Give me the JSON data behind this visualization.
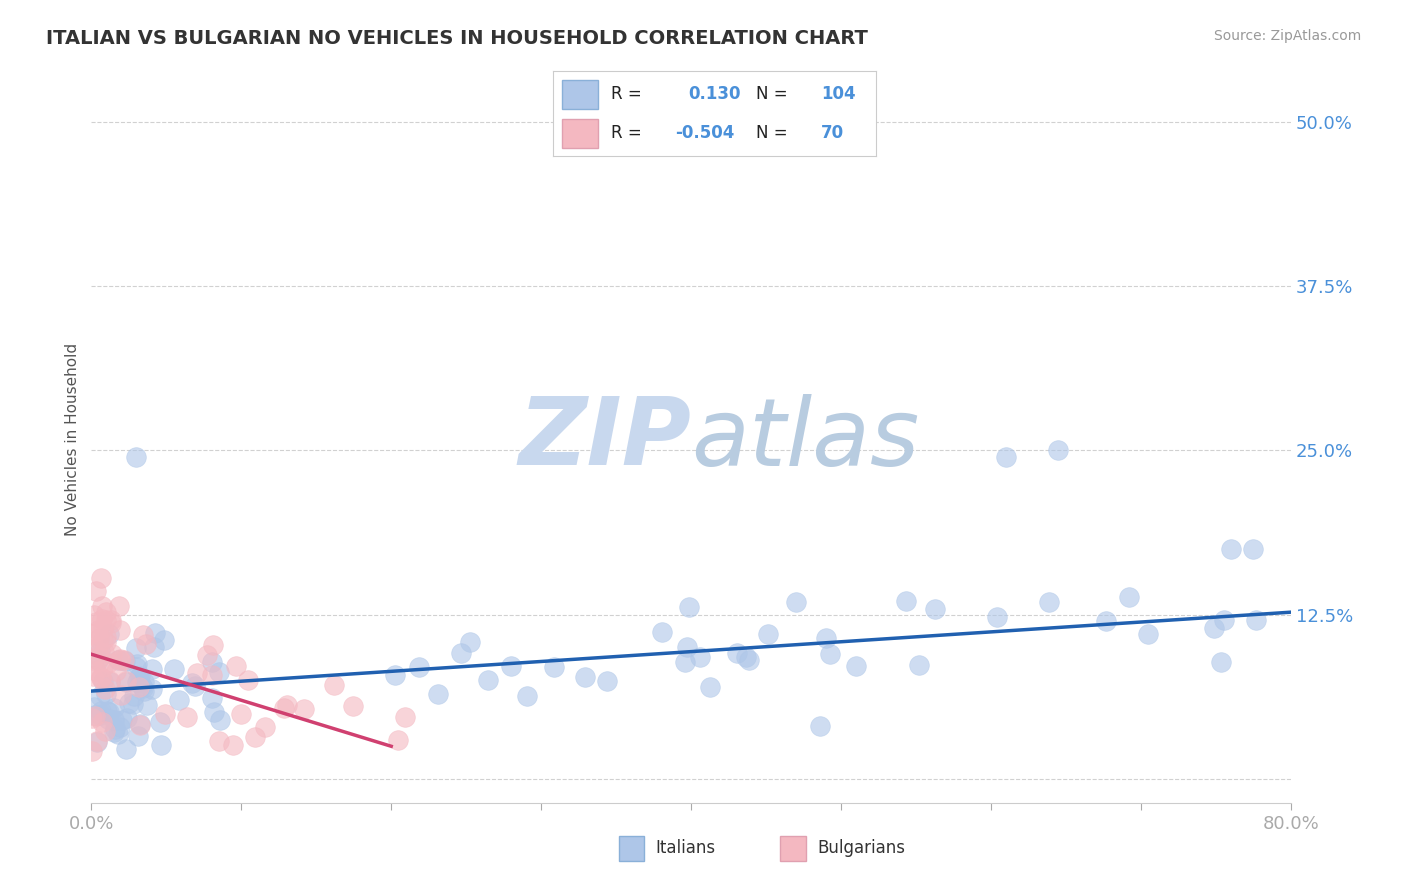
{
  "title": "ITALIAN VS BULGARIAN NO VEHICLES IN HOUSEHOLD CORRELATION CHART",
  "source": "Source: ZipAtlas.com",
  "ylabel": "No Vehicles in Household",
  "yticks": [
    0.0,
    0.125,
    0.25,
    0.375,
    0.5
  ],
  "ytick_labels": [
    "",
    "12.5%",
    "25.0%",
    "37.5%",
    "50.0%"
  ],
  "xmin": 0.0,
  "xmax": 0.8,
  "ymin": -0.018,
  "ymax": 0.535,
  "italian_R": 0.13,
  "italian_N": 104,
  "bulgarian_R": -0.504,
  "bulgarian_N": 70,
  "italian_color": "#aec6e8",
  "bulgarian_color": "#f4b8c1",
  "italian_line_color": "#2060b0",
  "bulgarian_line_color": "#d04070",
  "title_color": "#333333",
  "axis_label_color": "#4a90d9",
  "watermark_color": "#dce8f5",
  "background_color": "#ffffff",
  "grid_color": "#cccccc",
  "legend_border_color": "#cccccc",
  "source_color": "#999999"
}
